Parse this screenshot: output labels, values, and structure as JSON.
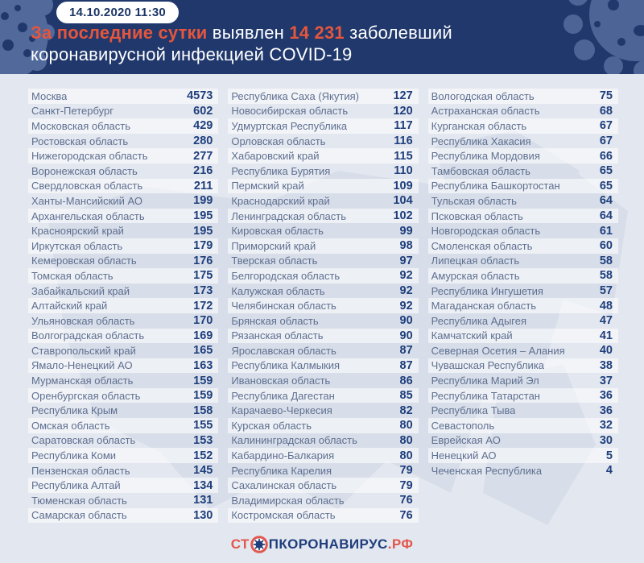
{
  "header": {
    "date": "14.10.2020 11:30",
    "title": {
      "seg_highlight1": "За последние сутки",
      "seg2": " выявлен ",
      "seg_highlight2": "14 231",
      "seg4": " заболевший",
      "line2": "коронавирусной инфекцией COVID-19"
    }
  },
  "table": {
    "columns": [
      [
        {
          "n": "Москва",
          "v": "4573"
        },
        {
          "n": "Санкт-Петербург",
          "v": "602"
        },
        {
          "n": "Московская область",
          "v": "429"
        },
        {
          "n": "Ростовская область",
          "v": "280"
        },
        {
          "n": "Нижегородская область",
          "v": "277"
        },
        {
          "n": "Воронежская область",
          "v": "216"
        },
        {
          "n": "Свердловская область",
          "v": "211"
        },
        {
          "n": "Ханты-Мансийский АО",
          "v": "199"
        },
        {
          "n": "Архангельская область",
          "v": "195"
        },
        {
          "n": "Красноярский край",
          "v": "195"
        },
        {
          "n": "Иркутская область",
          "v": "179"
        },
        {
          "n": "Кемеровская область",
          "v": "176"
        },
        {
          "n": "Томская область",
          "v": "175"
        },
        {
          "n": "Забайкальский край",
          "v": "173"
        },
        {
          "n": "Алтайский край",
          "v": "172"
        },
        {
          "n": "Ульяновская область",
          "v": "170"
        },
        {
          "n": "Волгоградская область",
          "v": "169"
        },
        {
          "n": "Ставропольский край",
          "v": "165"
        },
        {
          "n": "Ямало-Ненецкий АО",
          "v": "163"
        },
        {
          "n": "Мурманская область",
          "v": "159"
        },
        {
          "n": "Оренбургская область",
          "v": "159"
        },
        {
          "n": "Республика Крым",
          "v": "158"
        },
        {
          "n": "Омская область",
          "v": "155"
        },
        {
          "n": "Саратовская область",
          "v": "153"
        },
        {
          "n": "Республика Коми",
          "v": "152"
        },
        {
          "n": "Пензенская область",
          "v": "145"
        },
        {
          "n": "Республика Алтай",
          "v": "134"
        },
        {
          "n": "Тюменская область",
          "v": "131"
        },
        {
          "n": "Самарская область",
          "v": "130"
        }
      ],
      [
        {
          "n": "Республика Саха (Якутия)",
          "v": "127"
        },
        {
          "n": "Новосибирская область",
          "v": "120"
        },
        {
          "n": "Удмуртская Республика",
          "v": "117"
        },
        {
          "n": "Орловская область",
          "v": "116"
        },
        {
          "n": "Хабаровский край",
          "v": "115"
        },
        {
          "n": "Республика Бурятия",
          "v": "110"
        },
        {
          "n": "Пермский край",
          "v": "109"
        },
        {
          "n": "Краснодарский край",
          "v": "104"
        },
        {
          "n": "Ленинградская область",
          "v": "102"
        },
        {
          "n": "Кировская область",
          "v": "99"
        },
        {
          "n": "Приморский край",
          "v": "98"
        },
        {
          "n": "Тверская область",
          "v": "97"
        },
        {
          "n": "Белгородская область",
          "v": "92"
        },
        {
          "n": "Калужская область",
          "v": "92"
        },
        {
          "n": "Челябинская область",
          "v": "92"
        },
        {
          "n": "Брянская область",
          "v": "90"
        },
        {
          "n": "Рязанская область",
          "v": "90"
        },
        {
          "n": "Ярославская область",
          "v": "87"
        },
        {
          "n": "Республика Калмыкия",
          "v": "87"
        },
        {
          "n": "Ивановская область",
          "v": "86"
        },
        {
          "n": "Республика Дагестан",
          "v": "85"
        },
        {
          "n": "Карачаево-Черкесия",
          "v": "82"
        },
        {
          "n": "Курская область",
          "v": "80"
        },
        {
          "n": "Калининградская область",
          "v": "80"
        },
        {
          "n": "Кабардино-Балкария",
          "v": "80"
        },
        {
          "n": "Республика Карелия",
          "v": "79"
        },
        {
          "n": "Сахалинская область",
          "v": "79"
        },
        {
          "n": "Владимирская область",
          "v": "76"
        },
        {
          "n": "Костромская область",
          "v": "76"
        }
      ],
      [
        {
          "n": "Вологодская область",
          "v": "75"
        },
        {
          "n": "Астраханская область",
          "v": "68"
        },
        {
          "n": "Курганская область",
          "v": "67"
        },
        {
          "n": "Республика Хакасия",
          "v": "67"
        },
        {
          "n": "Республика Мордовия",
          "v": "66"
        },
        {
          "n": "Тамбовская область",
          "v": "65"
        },
        {
          "n": "Республика Башкортостан",
          "v": "65"
        },
        {
          "n": "Тульская область",
          "v": "64"
        },
        {
          "n": "Псковская область",
          "v": "64"
        },
        {
          "n": "Новгородская область",
          "v": "61"
        },
        {
          "n": "Смоленская область",
          "v": "60"
        },
        {
          "n": "Липецкая область",
          "v": "58"
        },
        {
          "n": "Амурская область",
          "v": "58"
        },
        {
          "n": "Республика Ингушетия",
          "v": "57"
        },
        {
          "n": "Магаданская область",
          "v": "48"
        },
        {
          "n": "Республика Адыгея",
          "v": "47"
        },
        {
          "n": "Камчатский край",
          "v": "41"
        },
        {
          "n": "Северная Осетия – Алания",
          "v": "40"
        },
        {
          "n": "Чувашская Республика",
          "v": "38"
        },
        {
          "n": "Республика Марий Эл",
          "v": "37"
        },
        {
          "n": "Республика Татарстан",
          "v": "36"
        },
        {
          "n": "Республика Тыва",
          "v": "36"
        },
        {
          "n": "Севастополь",
          "v": "32"
        },
        {
          "n": "Еврейская АО",
          "v": "30"
        },
        {
          "n": "Ненецкий АО",
          "v": "5"
        },
        {
          "n": "Чеченская Республика",
          "v": "4"
        }
      ]
    ]
  },
  "footer": {
    "logo_prefix": "СТ",
    "logo_middle": "ПКОРОНАВИРУС",
    "logo_suffix": ".РФ"
  },
  "colors": {
    "header_bg": "#20386c",
    "accent_orange": "#e4563d",
    "logo_red": "#e2574c",
    "number_navy": "#1e3e7c",
    "region_slate": "#5e6f90",
    "body_bg": "#e3e7ef"
  }
}
